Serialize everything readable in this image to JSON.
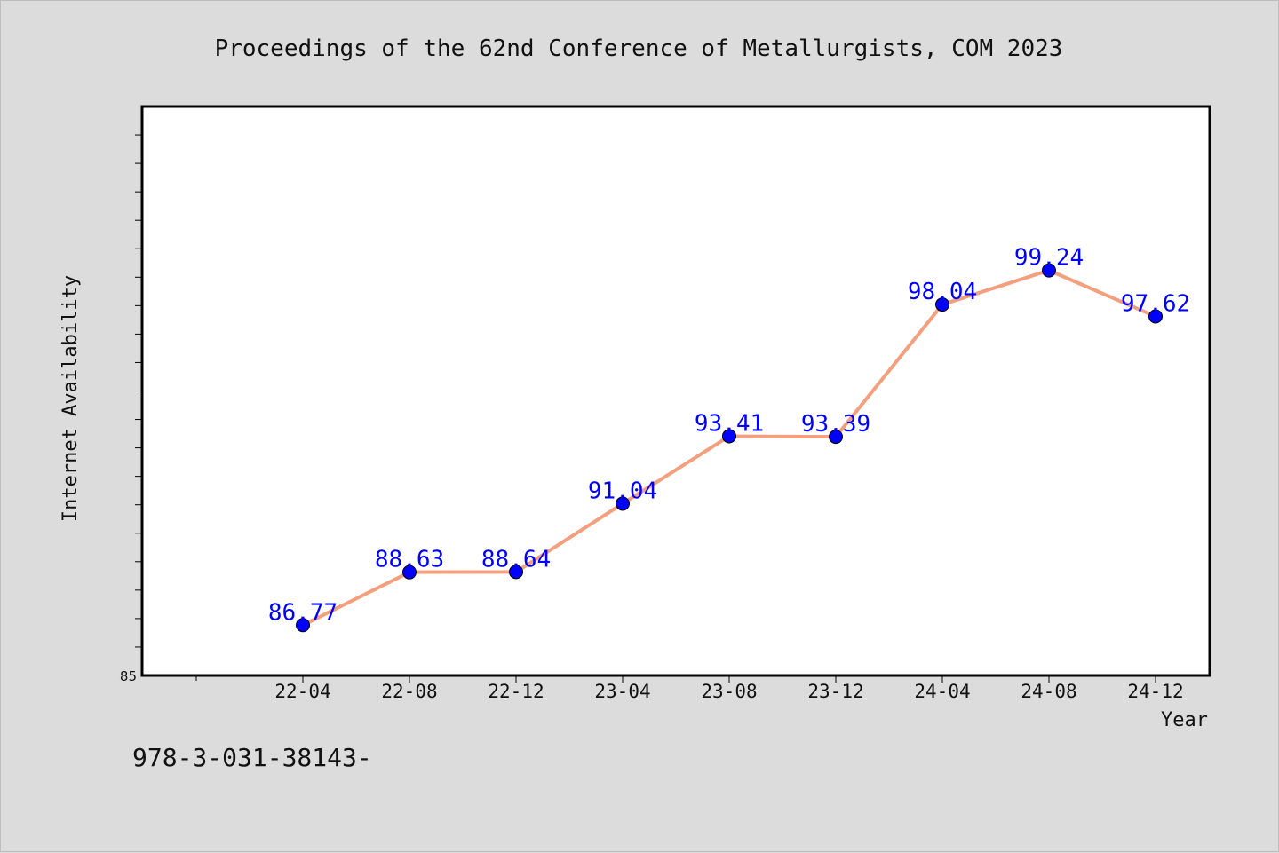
{
  "chart_data": {
    "type": "line",
    "title": "Proceedings of the 62nd Conference of Metallurgists, COM 2023",
    "xlabel": "Year",
    "ylabel": "Internet Availability",
    "categories": [
      "22-04",
      "22-08",
      "22-12",
      "23-04",
      "23-08",
      "23-12",
      "24-04",
      "24-08",
      "24-12"
    ],
    "series": [
      {
        "values": [
          86.77,
          88.63,
          88.64,
          91.04,
          93.41,
          93.39,
          98.04,
          99.24,
          97.62
        ],
        "labels": [
          "86.77",
          "88.63",
          "88.64",
          "91.04",
          "93.41",
          "93.39",
          "98.04",
          "99.24",
          "97.62"
        ]
      }
    ],
    "ylim": [
      85,
      105
    ],
    "y_tick_labels": [
      "85"
    ],
    "grid": false,
    "line_color": "#f4a07f",
    "marker_color": "#0000ff",
    "label_color": "#0000ff"
  },
  "footer": {
    "isbn_text": "978-3-031-38143-"
  }
}
